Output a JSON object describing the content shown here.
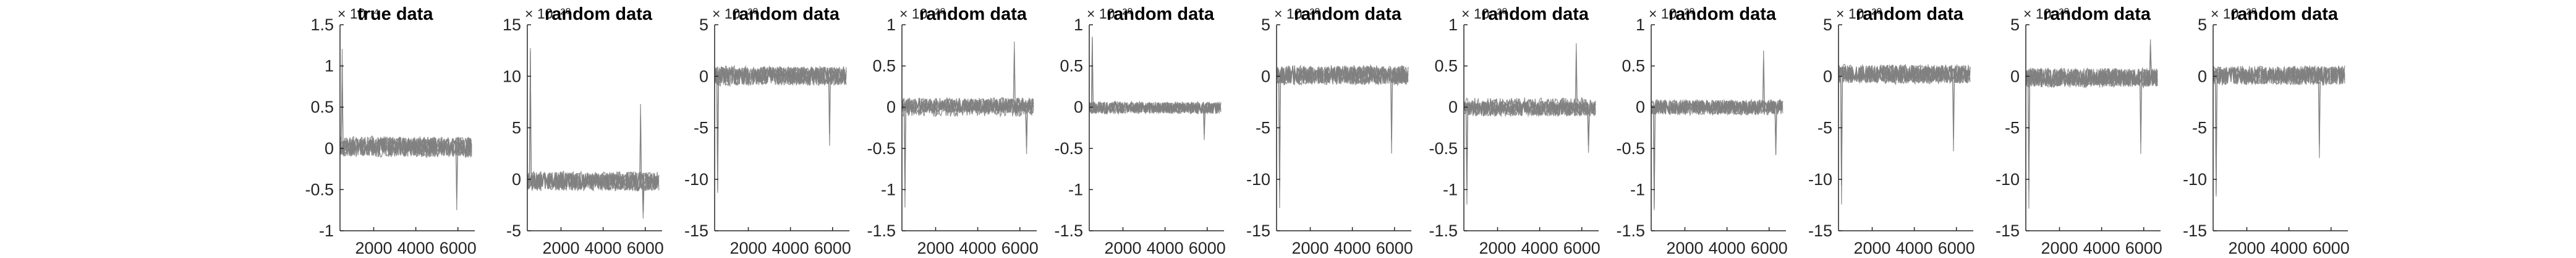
{
  "chart_data": [
    {
      "type": "line",
      "title": "true data",
      "exponent_label": "× 10⁻⁴",
      "ylim": [
        -1,
        1.5
      ],
      "yticks": [
        -1,
        -0.5,
        0,
        0.5,
        1,
        1.5
      ],
      "ytick_labels": [
        "-1",
        "-0.5",
        "0",
        "0.5",
        "1",
        "1.5"
      ],
      "xlim": [
        400,
        6800
      ],
      "xticks": [
        2000,
        4000,
        6000
      ],
      "xtick_labels": [
        "2000",
        "4000",
        "6000"
      ],
      "series_count": 8,
      "series_color": "#808080",
      "noise": 0.12,
      "spikes": [
        {
          "x": 520,
          "y": 1.3
        },
        {
          "x": 5950,
          "y": -0.85
        }
      ]
    },
    {
      "type": "line",
      "title": "random data",
      "exponent_label": "× 10⁻²⁰",
      "ylim": [
        -5,
        15
      ],
      "yticks": [
        -5,
        0,
        5,
        10,
        15
      ],
      "ytick_labels": [
        "-5",
        "0",
        "5",
        "10",
        "15"
      ],
      "xlim": [
        400,
        6800
      ],
      "xticks": [
        2000,
        4000,
        6000
      ],
      "xtick_labels": [
        "2000",
        "4000",
        "6000"
      ],
      "series_count": 8,
      "series_color": "#808080",
      "noise": 0.9,
      "spikes": [
        {
          "x": 560,
          "y": 13
        },
        {
          "x": 5780,
          "y": 8
        },
        {
          "x": 5900,
          "y": -4.4
        }
      ]
    },
    {
      "type": "line",
      "title": "random data",
      "exponent_label": "× 10⁻²⁰",
      "ylim": [
        -15,
        5
      ],
      "yticks": [
        -15,
        -10,
        -5,
        0,
        5
      ],
      "ytick_labels": [
        "-15",
        "-10",
        "-5",
        "0",
        "5"
      ],
      "xlim": [
        400,
        6800
      ],
      "xticks": [
        2000,
        4000,
        6000
      ],
      "xtick_labels": [
        "2000",
        "4000",
        "6000"
      ],
      "series_count": 8,
      "series_color": "#808080",
      "noise": 0.9,
      "spikes": [
        {
          "x": 560,
          "y": -13
        },
        {
          "x": 5850,
          "y": -7
        }
      ]
    },
    {
      "type": "line",
      "title": "random data",
      "exponent_label": "× 10⁻²⁰",
      "ylim": [
        -1.5,
        1
      ],
      "yticks": [
        -1.5,
        -1,
        -0.5,
        0,
        0.5,
        1
      ],
      "ytick_labels": [
        "-1.5",
        "-1",
        "-0.5",
        "0",
        "0.5",
        "1"
      ],
      "xlim": [
        400,
        6800
      ],
      "xticks": [
        2000,
        4000,
        6000
      ],
      "xtick_labels": [
        "2000",
        "4000",
        "6000"
      ],
      "series_count": 8,
      "series_color": "#808080",
      "noise": 0.09,
      "spikes": [
        {
          "x": 560,
          "y": -1.35
        },
        {
          "x": 5750,
          "y": 0.8
        },
        {
          "x": 6300,
          "y": -0.6
        }
      ]
    },
    {
      "type": "line",
      "title": "random data",
      "exponent_label": "× 10⁻²⁰",
      "ylim": [
        -1.5,
        1
      ],
      "yticks": [
        -1.5,
        -1,
        -0.5,
        0,
        0.5,
        1
      ],
      "ytick_labels": [
        "-1.5",
        "-1",
        "-0.5",
        "0",
        "0.5",
        "1"
      ],
      "xlim": [
        400,
        6800
      ],
      "xticks": [
        2000,
        4000,
        6000
      ],
      "xtick_labels": [
        "2000",
        "4000",
        "6000"
      ],
      "series_count": 8,
      "series_color": "#808080",
      "noise": 0.07,
      "spikes": [
        {
          "x": 560,
          "y": 0.9
        },
        {
          "x": 5850,
          "y": -0.45
        }
      ]
    },
    {
      "type": "line",
      "title": "random data",
      "exponent_label": "× 10⁻²⁰",
      "ylim": [
        -15,
        5
      ],
      "yticks": [
        -15,
        -10,
        -5,
        0,
        5
      ],
      "ytick_labels": [
        "-15",
        "-10",
        "-5",
        "0",
        "5"
      ],
      "xlim": [
        400,
        6800
      ],
      "xticks": [
        2000,
        4000,
        6000
      ],
      "xtick_labels": [
        "2000",
        "4000",
        "6000"
      ],
      "series_count": 8,
      "series_color": "#808080",
      "noise": 0.9,
      "spikes": [
        {
          "x": 560,
          "y": -13
        },
        {
          "x": 5850,
          "y": -8
        }
      ]
    },
    {
      "type": "line",
      "title": "random data",
      "exponent_label": "× 10⁻²⁰",
      "ylim": [
        -1.5,
        1
      ],
      "yticks": [
        -1.5,
        -1,
        -0.5,
        0,
        0.5,
        1
      ],
      "ytick_labels": [
        "-1.5",
        "-1",
        "-0.5",
        "0",
        "0.5",
        "1"
      ],
      "xlim": [
        400,
        6800
      ],
      "xticks": [
        2000,
        4000,
        6000
      ],
      "xtick_labels": [
        "2000",
        "4000",
        "6000"
      ],
      "series_count": 8,
      "series_color": "#808080",
      "noise": 0.09,
      "spikes": [
        {
          "x": 560,
          "y": -1.35
        },
        {
          "x": 5750,
          "y": 0.8
        },
        {
          "x": 6300,
          "y": -0.6
        }
      ]
    },
    {
      "type": "line",
      "title": "random data",
      "exponent_label": "× 10⁻²⁰",
      "ylim": [
        -1.5,
        1
      ],
      "yticks": [
        -1.5,
        -1,
        -0.5,
        0,
        0.5,
        1
      ],
      "ytick_labels": [
        "-1.5",
        "-1",
        "-0.5",
        "0",
        "0.5",
        "1"
      ],
      "xlim": [
        400,
        6800
      ],
      "xticks": [
        2000,
        4000,
        6000
      ],
      "xtick_labels": [
        "2000",
        "4000",
        "6000"
      ],
      "series_count": 8,
      "series_color": "#808080",
      "noise": 0.09,
      "spikes": [
        {
          "x": 560,
          "y": -1.35
        },
        {
          "x": 5750,
          "y": 0.8
        },
        {
          "x": 6300,
          "y": -0.6
        }
      ]
    },
    {
      "type": "line",
      "title": "random data",
      "exponent_label": "× 10⁻²⁰",
      "ylim": [
        -15,
        5
      ],
      "yticks": [
        -15,
        -10,
        -5,
        0,
        5
      ],
      "ytick_labels": [
        "-15",
        "-10",
        "-5",
        "0",
        "5"
      ],
      "xlim": [
        400,
        6800
      ],
      "xticks": [
        2000,
        4000,
        6000
      ],
      "xtick_labels": [
        "2000",
        "4000",
        "6000"
      ],
      "series_count": 8,
      "series_color": "#808080",
      "noise": 0.9,
      "spikes": [
        {
          "x": 560,
          "y": -13
        },
        {
          "x": 5850,
          "y": -8
        }
      ]
    },
    {
      "type": "line",
      "title": "random data",
      "exponent_label": "× 10⁻²⁰",
      "ylim": [
        -15,
        5
      ],
      "yticks": [
        -15,
        -10,
        -5,
        0,
        5
      ],
      "ytick_labels": [
        "-15",
        "-10",
        "-5",
        "0",
        "5"
      ],
      "xlim": [
        400,
        6800
      ],
      "xticks": [
        2000,
        4000,
        6000
      ],
      "xtick_labels": [
        "2000",
        "4000",
        "6000"
      ],
      "series_count": 8,
      "series_color": "#808080",
      "noise": 0.9,
      "spikes": [
        {
          "x": 560,
          "y": -13
        },
        {
          "x": 5850,
          "y": -8
        },
        {
          "x": 6300,
          "y": 4
        }
      ]
    },
    {
      "type": "line",
      "title": "random data",
      "exponent_label": "× 10⁻²⁰",
      "ylim": [
        -15,
        5
      ],
      "yticks": [
        -15,
        -10,
        -5,
        0,
        5
      ],
      "ytick_labels": [
        "-15",
        "-10",
        "-5",
        "0",
        "5"
      ],
      "xlim": [
        400,
        6800
      ],
      "xticks": [
        2000,
        4000,
        6000
      ],
      "xtick_labels": [
        "2000",
        "4000",
        "6000"
      ],
      "series_count": 8,
      "series_color": "#808080",
      "noise": 0.9,
      "spikes": [
        {
          "x": 560,
          "y": -13
        },
        {
          "x": 5450,
          "y": -8
        }
      ]
    }
  ]
}
